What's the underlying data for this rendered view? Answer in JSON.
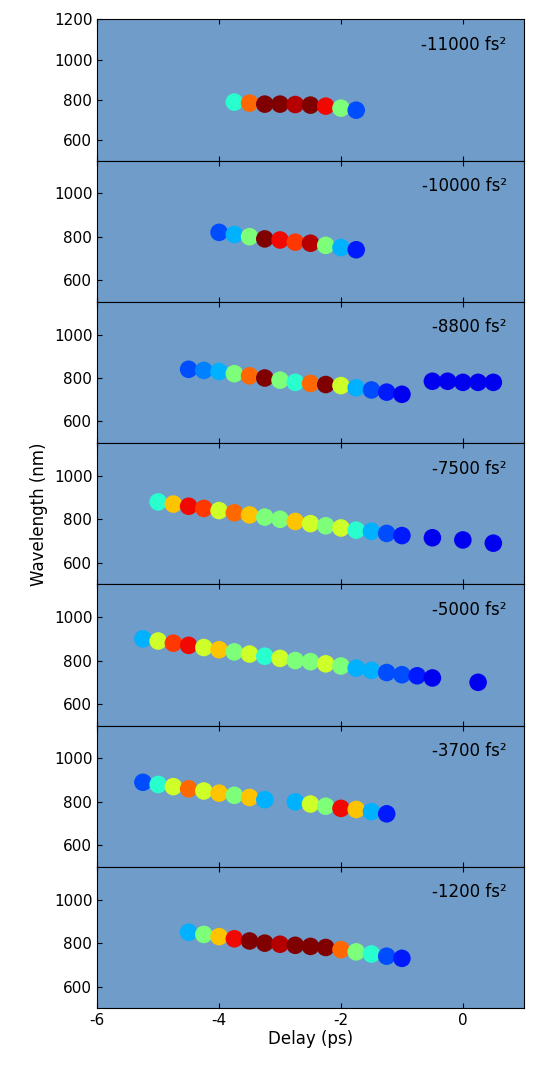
{
  "chart_data": [
    {
      "type": "scatter",
      "annotation": "-11000 fs²",
      "marker": "o",
      "tick_labels": "y",
      "x": [
        -3.75,
        -3.5,
        -3.25,
        -3.0,
        -2.75,
        -2.5,
        -2.25,
        -2.0,
        -1.75
      ],
      "y": [
        790,
        785,
        780,
        780,
        778,
        775,
        770,
        760,
        750
      ],
      "intensity": [
        0.4,
        0.8,
        1.0,
        1.0,
        0.95,
        1.0,
        0.9,
        0.5,
        0.2
      ],
      "intensity_range": [
        0,
        1
      ],
      "xlim": [
        -6,
        1
      ],
      "xticks": [
        -6,
        -4,
        -2,
        0
      ],
      "ylim": [
        500,
        1200
      ],
      "yticks": [
        600,
        800,
        1000,
        1200
      ]
    },
    {
      "type": "scatter",
      "annotation": "-10000 fs²",
      "marker": "o",
      "tick_labels": "y",
      "x": [
        -4.0,
        -3.75,
        -3.5,
        -3.25,
        -3.0,
        -2.75,
        -2.5,
        -2.25,
        -2.0,
        -1.75
      ],
      "y": [
        820,
        810,
        800,
        790,
        785,
        775,
        770,
        760,
        750,
        740
      ],
      "intensity": [
        0.2,
        0.3,
        0.5,
        1.0,
        0.9,
        0.85,
        0.95,
        0.5,
        0.3,
        0.15
      ],
      "intensity_range": [
        0,
        1
      ],
      "xlim": [
        -6,
        1
      ],
      "xticks": [
        -6,
        -4,
        -2,
        0
      ],
      "ylim": [
        500,
        1150
      ],
      "yticks": [
        600,
        800,
        1000
      ]
    },
    {
      "type": "scatter",
      "annotation": "-8800 fs²",
      "marker": "o",
      "tick_labels": "y",
      "x": [
        -4.5,
        -4.25,
        -4.0,
        -3.75,
        -3.5,
        -3.25,
        -3.0,
        -2.75,
        -2.5,
        -2.25,
        -2.0,
        -1.75,
        -1.5,
        -1.25,
        -1.0,
        -0.5,
        -0.25,
        0.0,
        0.25,
        0.5
      ],
      "y": [
        840,
        835,
        830,
        820,
        810,
        800,
        790,
        780,
        775,
        770,
        765,
        755,
        745,
        735,
        725,
        785,
        785,
        780,
        780,
        780
      ],
      "intensity": [
        0.2,
        0.25,
        0.3,
        0.5,
        0.8,
        1.0,
        0.5,
        0.4,
        0.8,
        1.0,
        0.6,
        0.3,
        0.2,
        0.15,
        0.1,
        0.1,
        0.1,
        0.1,
        0.1,
        0.1
      ],
      "intensity_range": [
        0,
        1
      ],
      "xlim": [
        -6,
        1
      ],
      "xticks": [
        -6,
        -4,
        -2,
        0
      ],
      "ylim": [
        500,
        1150
      ],
      "yticks": [
        600,
        800,
        1000
      ]
    },
    {
      "type": "scatter",
      "annotation": "-7500 fs²",
      "marker": "o",
      "tick_labels": "y",
      "ylabel": "Wavelength (nm)",
      "x": [
        -5.0,
        -4.75,
        -4.5,
        -4.25,
        -4.0,
        -3.75,
        -3.5,
        -3.25,
        -3.0,
        -2.75,
        -2.5,
        -2.25,
        -2.0,
        -1.75,
        -1.5,
        -1.25,
        -1.0,
        -0.5,
        0.0,
        0.5
      ],
      "y": [
        880,
        870,
        860,
        850,
        840,
        830,
        820,
        810,
        800,
        790,
        780,
        770,
        760,
        750,
        745,
        735,
        725,
        715,
        705,
        690
      ],
      "intensity": [
        0.4,
        0.7,
        0.9,
        0.85,
        0.6,
        0.8,
        0.7,
        0.5,
        0.5,
        0.7,
        0.6,
        0.5,
        0.6,
        0.4,
        0.3,
        0.2,
        0.15,
        0.1,
        0.1,
        0.1
      ],
      "intensity_range": [
        0,
        1
      ],
      "xlim": [
        -6,
        1
      ],
      "xticks": [
        -6,
        -4,
        -2,
        0
      ],
      "ylim": [
        500,
        1150
      ],
      "yticks": [
        600,
        800,
        1000
      ]
    },
    {
      "type": "scatter",
      "annotation": "-5000 fs²",
      "marker": "o",
      "tick_labels": "y",
      "x": [
        -5.25,
        -5.0,
        -4.75,
        -4.5,
        -4.25,
        -4.0,
        -3.75,
        -3.5,
        -3.25,
        -3.0,
        -2.75,
        -2.5,
        -2.25,
        -2.0,
        -1.75,
        -1.5,
        -1.25,
        -1.0,
        -0.75,
        -0.5,
        0.25
      ],
      "y": [
        900,
        890,
        880,
        870,
        860,
        850,
        840,
        830,
        820,
        810,
        800,
        795,
        785,
        775,
        765,
        755,
        745,
        735,
        730,
        720,
        700
      ],
      "intensity": [
        0.3,
        0.6,
        0.85,
        0.9,
        0.6,
        0.7,
        0.5,
        0.6,
        0.4,
        0.6,
        0.5,
        0.5,
        0.6,
        0.5,
        0.3,
        0.3,
        0.2,
        0.2,
        0.15,
        0.1,
        0.1
      ],
      "intensity_range": [
        0,
        1
      ],
      "xlim": [
        -6,
        1
      ],
      "xticks": [
        -6,
        -4,
        -2,
        0
      ],
      "ylim": [
        500,
        1150
      ],
      "yticks": [
        600,
        800,
        1000
      ]
    },
    {
      "type": "scatter",
      "annotation": "-3700 fs²",
      "marker": "o",
      "tick_labels": "y",
      "x": [
        -5.25,
        -5.0,
        -4.75,
        -4.5,
        -4.25,
        -4.0,
        -3.75,
        -3.5,
        -3.25,
        -2.75,
        -2.5,
        -2.25,
        -2.0,
        -1.75,
        -1.5,
        -1.25
      ],
      "y": [
        890,
        880,
        870,
        860,
        850,
        840,
        830,
        820,
        810,
        800,
        790,
        780,
        770,
        765,
        755,
        745
      ],
      "intensity": [
        0.2,
        0.4,
        0.6,
        0.8,
        0.6,
        0.7,
        0.5,
        0.7,
        0.3,
        0.3,
        0.6,
        0.5,
        0.9,
        0.7,
        0.3,
        0.15
      ],
      "intensity_range": [
        0,
        1
      ],
      "xlim": [
        -6,
        1
      ],
      "xticks": [
        -6,
        -4,
        -2,
        0
      ],
      "ylim": [
        500,
        1150
      ],
      "yticks": [
        600,
        800,
        1000
      ]
    },
    {
      "type": "scatter",
      "annotation": "-1200 fs²",
      "marker": "o",
      "xlabel": "Delay (ps)",
      "x": [
        -4.5,
        -4.25,
        -4.0,
        -3.75,
        -3.5,
        -3.25,
        -3.0,
        -2.75,
        -2.5,
        -2.25,
        -2.0,
        -1.75,
        -1.5,
        -1.25,
        -1.0
      ],
      "y": [
        850,
        840,
        830,
        820,
        810,
        800,
        795,
        790,
        785,
        780,
        770,
        760,
        750,
        740,
        730
      ],
      "intensity": [
        0.3,
        0.5,
        0.7,
        0.9,
        1.0,
        1.0,
        0.95,
        1.0,
        1.0,
        1.0,
        0.8,
        0.5,
        0.4,
        0.2,
        0.15
      ],
      "intensity_range": [
        0,
        1
      ],
      "xlim": [
        -6,
        1
      ],
      "xticks": [
        -6,
        -4,
        -2,
        0
      ],
      "ylim": [
        500,
        1150
      ],
      "yticks": [
        600,
        800,
        1000
      ]
    }
  ]
}
